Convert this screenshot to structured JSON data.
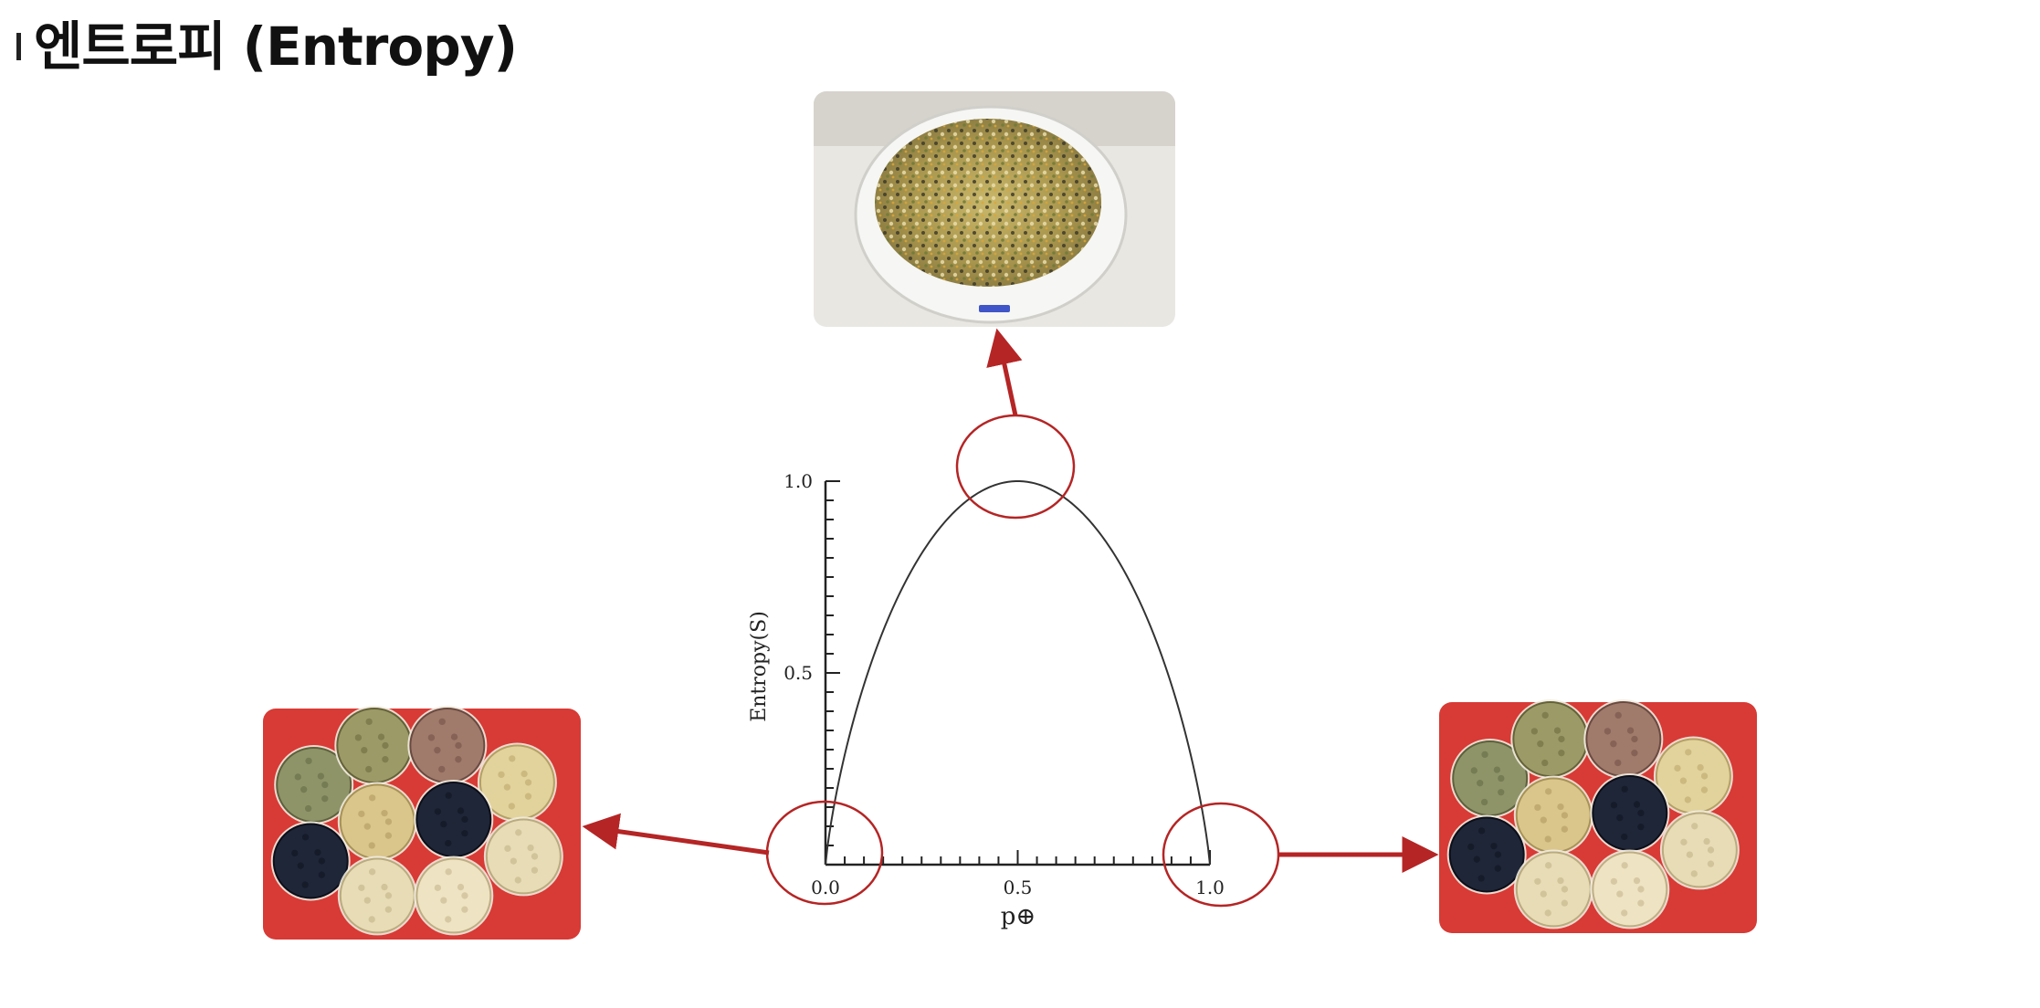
{
  "title": "엔트로피 (Entropy)",
  "colors": {
    "accent": "#b52525",
    "tray_red": "#d83a35",
    "curve": "#333333"
  },
  "chart_data": {
    "type": "line",
    "title": "",
    "xlabel": "p⊕",
    "ylabel": "Entropy(S)",
    "xlim": [
      0,
      1
    ],
    "ylim": [
      0,
      1
    ],
    "x_ticks": [
      "0.0",
      "0.5",
      "1.0"
    ],
    "y_ticks": [
      "0.5",
      "1.0"
    ],
    "series": [
      {
        "x": [
          0,
          0.05,
          0.1,
          0.15,
          0.2,
          0.25,
          0.3,
          0.35,
          0.4,
          0.45,
          0.5,
          0.55,
          0.6,
          0.65,
          0.7,
          0.75,
          0.8,
          0.85,
          0.9,
          0.95,
          1
        ],
        "y": [
          0,
          0.286,
          0.469,
          0.61,
          0.722,
          0.811,
          0.881,
          0.934,
          0.971,
          0.993,
          1,
          0.993,
          0.971,
          0.934,
          0.881,
          0.811,
          0.722,
          0.61,
          0.469,
          0.286,
          0
        ]
      }
    ],
    "highlights": [
      {
        "x": 0.5,
        "y": 1.0,
        "points_to": "mixed-grains"
      },
      {
        "x": 0.0,
        "y": 0.0,
        "points_to": "sorted-grains-left"
      },
      {
        "x": 1.0,
        "y": 0.0,
        "points_to": "sorted-grains-right"
      }
    ]
  },
  "images": {
    "mixed": {
      "icon": "mixed-grain-bowl-image"
    },
    "sorted_left": {
      "icon": "sorted-grains-tray-image"
    },
    "sorted_right": {
      "icon": "sorted-grains-tray-image"
    }
  }
}
